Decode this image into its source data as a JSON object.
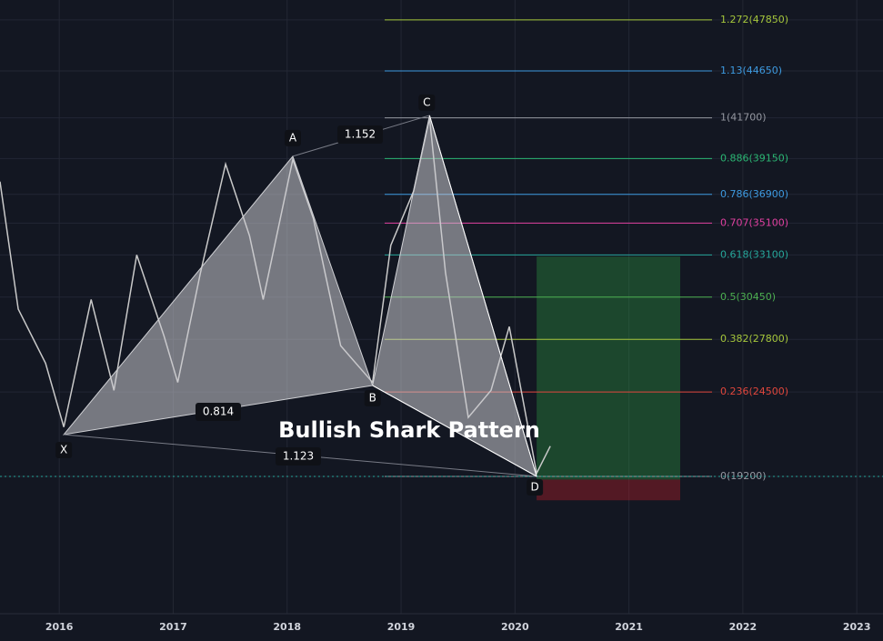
{
  "chart_data": {
    "type": "harmonic",
    "title": "Bullish Shark Pattern",
    "xlim": [
      2015.48,
      2023.23
    ],
    "ylim": [
      10580,
      49100
    ],
    "xticks": [
      2016,
      2017,
      2018,
      2019,
      2020,
      2021,
      2022,
      2023
    ],
    "levels": [
      {
        "value": 47850,
        "label": "1.272(47850)",
        "color": "#a5c63b"
      },
      {
        "value": 44650,
        "label": "1.13(44650)",
        "color": "#3d9ae0"
      },
      {
        "value": 41700,
        "label": "1(41700)",
        "color": "#9598a1"
      },
      {
        "value": 39150,
        "label": "0.886(39150)",
        "color": "#2bb673"
      },
      {
        "value": 36900,
        "label": "0.786(36900)",
        "color": "#3d9ae0"
      },
      {
        "value": 35100,
        "label": "0.707(35100)",
        "color": "#e040a0"
      },
      {
        "value": 33100,
        "label": "0.618(33100)",
        "color": "#26a69a"
      },
      {
        "value": 30450,
        "label": "0.5(30450)",
        "color": "#4caf50"
      },
      {
        "value": 27800,
        "label": "0.382(27800)",
        "color": "#a5c63b"
      },
      {
        "value": 24500,
        "label": "0.236(24500)",
        "color": "#e0463c"
      },
      {
        "value": 19200,
        "label": "0(19200)",
        "color": "#9598a1"
      }
    ],
    "points": {
      "labels": [
        "X",
        "A",
        "B",
        "C",
        "D"
      ],
      "x": [
        2016.04,
        2018.05,
        2018.75,
        2019.25,
        2020.19
      ],
      "y": [
        21825,
        39290,
        24907,
        41857,
        19200
      ]
    },
    "ratios": [
      1.152,
      0.814,
      1.123
    ],
    "price": {
      "color": "#c9c9c9",
      "x": [
        2015.48,
        2015.64,
        2015.88,
        2016.04,
        2016.28,
        2016.48,
        2016.68,
        2016.92,
        2017.04,
        2017.24,
        2017.46,
        2017.67,
        2017.79,
        2018.05,
        2018.23,
        2018.47,
        2018.75,
        2018.91,
        2019.11,
        2019.25,
        2019.39,
        2019.59,
        2019.79,
        2019.95,
        2020.19,
        2020.31
      ],
      "values": [
        37700,
        29700,
        26300,
        22300,
        30300,
        24600,
        33100,
        28000,
        25100,
        32000,
        38800,
        34300,
        30300,
        39100,
        35400,
        27400,
        25100,
        33700,
        37100,
        41700,
        32000,
        22900,
        24600,
        28600,
        19400,
        21100
      ]
    },
    "position": {
      "x": [
        2020.19,
        2021.45
      ],
      "entry": 19000,
      "target": 33000,
      "stop": 17700
    }
  }
}
